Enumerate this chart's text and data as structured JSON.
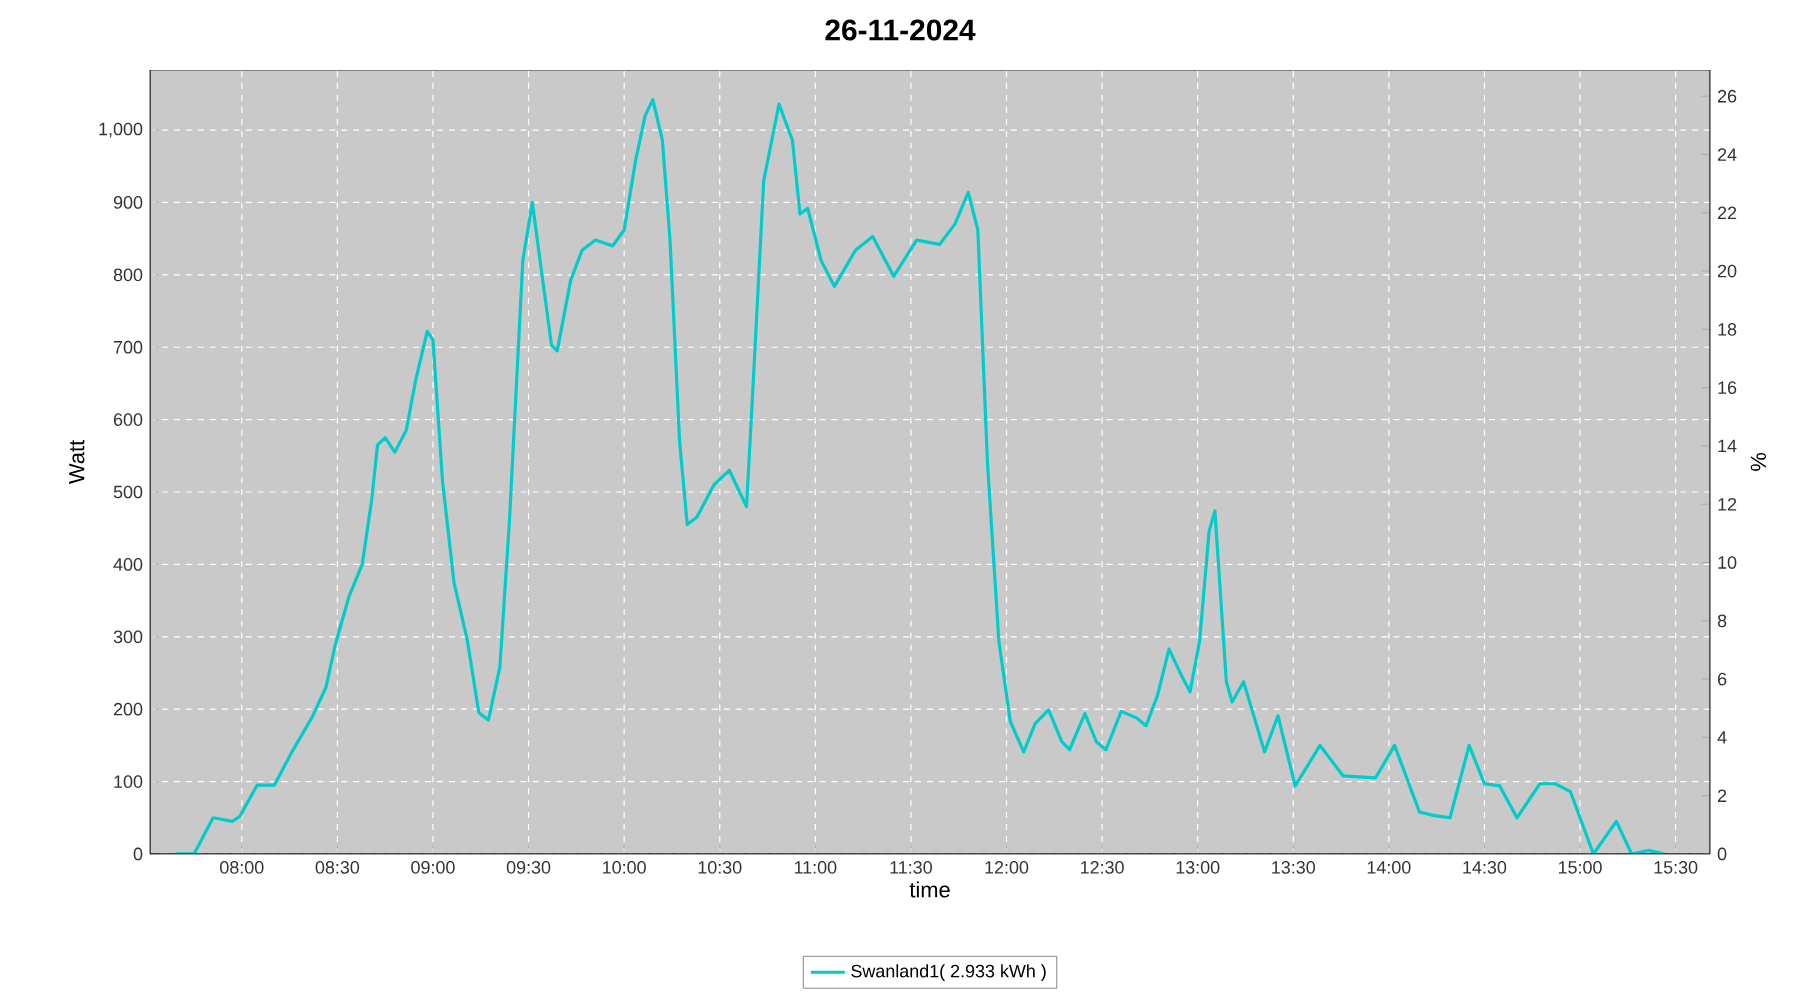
{
  "chart_data": {
    "type": "line",
    "title": "26-11-2024",
    "xlabel": "time",
    "ylabel": "Watt",
    "y2label": "%",
    "xlim": [
      7.52,
      15.68
    ],
    "ylim": [
      0,
      1083
    ],
    "y2lim": [
      0,
      26.9
    ],
    "xticks": [
      {
        "value": 8,
        "label": "08:00"
      },
      {
        "value": 8.5,
        "label": "08:30"
      },
      {
        "value": 9,
        "label": "09:00"
      },
      {
        "value": 9.5,
        "label": "09:30"
      },
      {
        "value": 10,
        "label": "10:00"
      },
      {
        "value": 10.5,
        "label": "10:30"
      },
      {
        "value": 11,
        "label": "11:00"
      },
      {
        "value": 11.5,
        "label": "11:30"
      },
      {
        "value": 12,
        "label": "12:00"
      },
      {
        "value": 12.5,
        "label": "12:30"
      },
      {
        "value": 13,
        "label": "13:00"
      },
      {
        "value": 13.5,
        "label": "13:30"
      },
      {
        "value": 14,
        "label": "14:00"
      },
      {
        "value": 14.5,
        "label": "14:30"
      },
      {
        "value": 15,
        "label": "15:00"
      },
      {
        "value": 15.5,
        "label": "15:30"
      }
    ],
    "yticks": [
      0,
      100,
      200,
      300,
      400,
      500,
      600,
      700,
      800,
      900,
      {
        "value": 1000,
        "label": "1,000"
      }
    ],
    "y2ticks": [
      0,
      2,
      4,
      6,
      8,
      10,
      12,
      14,
      16,
      18,
      20,
      22,
      24,
      26
    ],
    "grid": true,
    "legend": "bottom",
    "series": [
      {
        "name": "Swanland1( 2.933 kWh )",
        "color": "#00cccc",
        "x": [
          7.655,
          7.75,
          7.85,
          7.95,
          7.99,
          8.08,
          8.17,
          8.26,
          8.37,
          8.44,
          8.49,
          8.56,
          8.63,
          8.68,
          8.71,
          8.75,
          8.8,
          8.86,
          8.91,
          8.97,
          9.0,
          9.05,
          9.11,
          9.18,
          9.24,
          9.29,
          9.35,
          9.4,
          9.47,
          9.52,
          9.56,
          9.62,
          9.65,
          9.72,
          9.78,
          9.85,
          9.94,
          10.0,
          10.06,
          10.11,
          10.15,
          10.2,
          10.24,
          10.29,
          10.33,
          10.38,
          10.47,
          10.55,
          10.64,
          10.67,
          10.73,
          10.81,
          10.88,
          10.92,
          10.96,
          11.03,
          11.1,
          11.21,
          11.3,
          11.41,
          11.53,
          11.65,
          11.73,
          11.8,
          11.85,
          11.9,
          11.96,
          12.02,
          12.09,
          12.15,
          12.22,
          12.29,
          12.33,
          12.41,
          12.47,
          12.52,
          12.6,
          12.68,
          12.73,
          12.79,
          12.85,
          12.92,
          12.96,
          13.01,
          13.06,
          13.09,
          13.15,
          13.18,
          13.24,
          13.35,
          13.42,
          13.51,
          13.64,
          13.76,
          13.93,
          14.03,
          14.16,
          14.24,
          14.32,
          14.42,
          14.5,
          14.58,
          14.67,
          14.79,
          14.87,
          14.95,
          15.07,
          15.19,
          15.27,
          15.36,
          15.44
        ],
        "values": [
          0,
          0,
          50,
          45,
          52,
          95,
          95,
          140,
          190,
          230,
          290,
          355,
          400,
          490,
          565,
          575,
          555,
          585,
          655,
          722,
          710,
          515,
          375,
          295,
          195,
          185,
          258,
          460,
          820,
          900,
          820,
          703,
          695,
          792,
          834,
          848,
          840,
          862,
          958,
          1020,
          1042,
          986,
          848,
          570,
          455,
          465,
          510,
          530,
          480,
          625,
          930,
          1036,
          986,
          884,
          892,
          820,
          784,
          834,
          853,
          798,
          848,
          842,
          870,
          914,
          862,
          543,
          294,
          183,
          141,
          180,
          199,
          155,
          144,
          194,
          155,
          144,
          197,
          188,
          177,
          219,
          283,
          244,
          224,
          294,
          446,
          474,
          238,
          210,
          238,
          141,
          191,
          94,
          150,
          108,
          105,
          150,
          58,
          53,
          50,
          150,
          97,
          94,
          50,
          97,
          97,
          86,
          0,
          45,
          0,
          5,
          0
        ]
      }
    ]
  }
}
